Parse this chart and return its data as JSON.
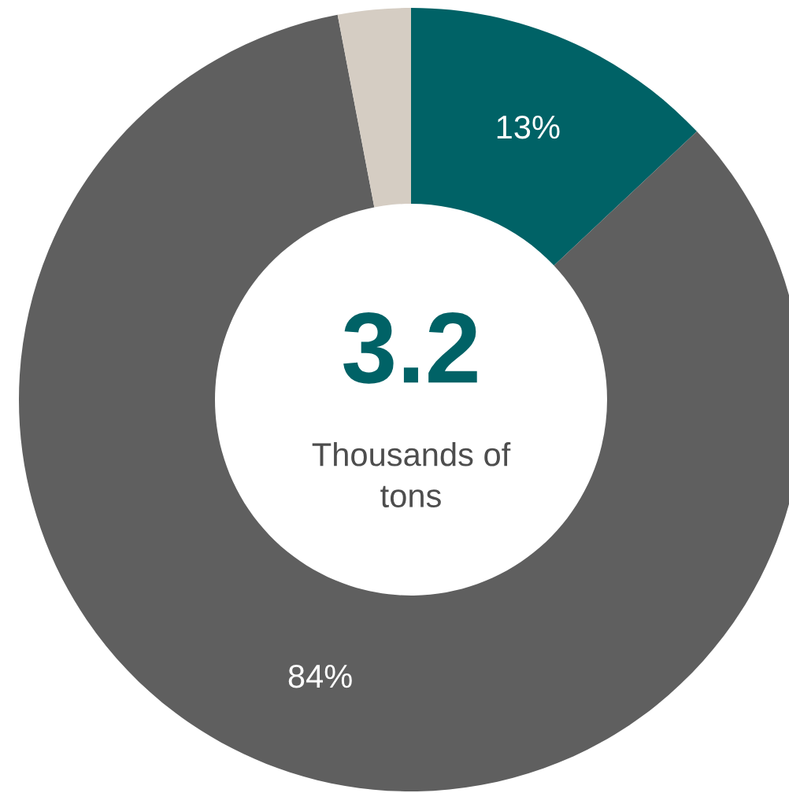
{
  "chart_data": {
    "type": "donut",
    "categories": [
      null,
      null,
      null
    ],
    "values": [
      13,
      84,
      3
    ],
    "colors": [
      "#006266",
      "#5f5f5f",
      "#d5cdc3"
    ],
    "value_labels": [
      "13%",
      "84%",
      null
    ],
    "annotations": [
      "3.2",
      "Thousands of\ntons"
    ]
  }
}
